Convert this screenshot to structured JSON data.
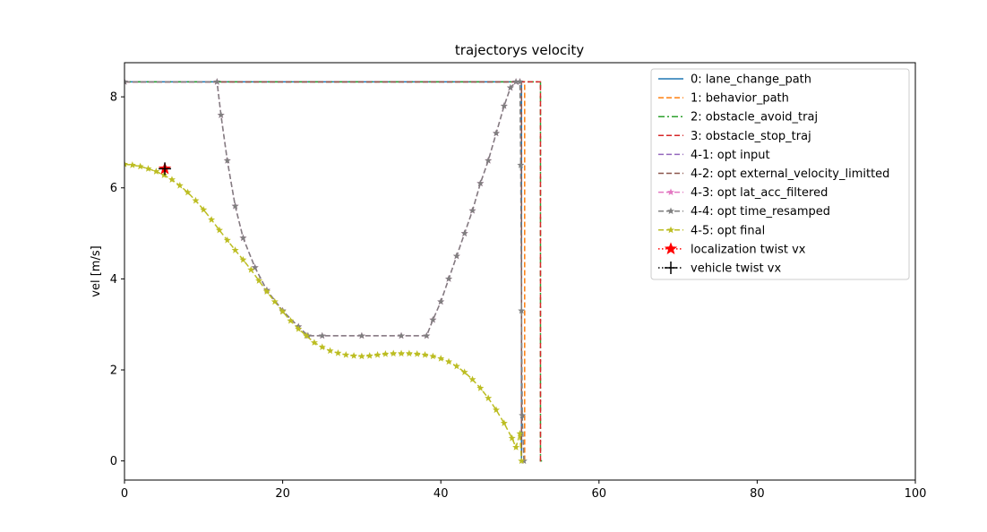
{
  "chart_data": {
    "type": "line",
    "title": "trajectorys velocity",
    "xlabel": "",
    "ylabel": "vel [m/s]",
    "xlim": [
      0,
      100
    ],
    "ylim": [
      -0.42,
      8.75
    ],
    "xticks": [
      0,
      20,
      40,
      60,
      80,
      100
    ],
    "yticks": [
      0,
      2,
      4,
      6,
      8
    ],
    "xtick_labels": [
      "0",
      "20",
      "40",
      "60",
      "80",
      "100"
    ],
    "ytick_labels": [
      "0",
      "2",
      "4",
      "6",
      "8"
    ],
    "grid": false,
    "legend_position": "top-right",
    "series": [
      {
        "name": "0: lane_change_path",
        "color": "#1f77b4",
        "linestyle": "solid",
        "marker": "none",
        "x": [
          0,
          50.2,
          50.2,
          50.4
        ],
        "y": [
          8.33,
          8.33,
          0,
          0
        ]
      },
      {
        "name": "1: behavior_path",
        "color": "#ff7f0e",
        "linestyle": "dashed",
        "marker": "none",
        "x": [
          0,
          50.6,
          50.6,
          50.8
        ],
        "y": [
          8.33,
          8.33,
          0,
          0
        ]
      },
      {
        "name": "2: obstacle_avoid_traj",
        "color": "#2ca02c",
        "linestyle": "dashdot",
        "marker": "none",
        "x": [
          0,
          52.6,
          52.6,
          52.8
        ],
        "y": [
          8.33,
          8.33,
          0,
          0
        ]
      },
      {
        "name": "3: obstacle_stop_traj",
        "color": "#d62728",
        "linestyle": "dashed",
        "marker": "none",
        "x": [
          0,
          52.6,
          52.6,
          52.8
        ],
        "y": [
          8.33,
          8.33,
          0,
          0
        ]
      },
      {
        "name": "4-1: opt input",
        "color": "#9467bd",
        "linestyle": "dashed",
        "marker": "none",
        "x": [
          0,
          50.2,
          50.2,
          50.4
        ],
        "y": [
          8.33,
          8.33,
          0,
          0
        ]
      },
      {
        "name": "4-2: opt external_velocity_limitted",
        "color": "#8c564b",
        "linestyle": "dashed",
        "marker": "none",
        "x": [
          0,
          50.2,
          50.2,
          50.4
        ],
        "y": [
          8.33,
          8.33,
          0,
          0
        ]
      },
      {
        "name": "4-3: opt lat_acc_filtered",
        "color": "#e377c2",
        "linestyle": "dashed",
        "marker": "star",
        "x": [
          0,
          11.7,
          12.2,
          13,
          14,
          15,
          16.5,
          18,
          20,
          22,
          23.2,
          25,
          30,
          35,
          38.2,
          39,
          40,
          41,
          42,
          43,
          44,
          45,
          46,
          47,
          48,
          48.8,
          49.5,
          50
        ],
        "y": [
          8.33,
          8.33,
          7.6,
          6.6,
          5.6,
          4.9,
          4.25,
          3.75,
          3.3,
          2.95,
          2.75,
          2.75,
          2.75,
          2.75,
          2.75,
          3.1,
          3.5,
          4.0,
          4.5,
          5.0,
          5.5,
          6.1,
          6.6,
          7.2,
          7.8,
          8.2,
          8.33,
          8.33
        ]
      },
      {
        "name": "4-4: opt time_resamped",
        "color": "#7f7f7f",
        "linestyle": "dashed",
        "marker": "star",
        "x": [
          0,
          11.7,
          12.2,
          13,
          14,
          15,
          16.5,
          18,
          20,
          22,
          23.2,
          25,
          30,
          35,
          38.2,
          39,
          40,
          41,
          42,
          43,
          44,
          45,
          46,
          47,
          48,
          48.8,
          49.5,
          50,
          50.1,
          50.2,
          50.3,
          50.5
        ],
        "y": [
          8.33,
          8.33,
          7.6,
          6.6,
          5.6,
          4.9,
          4.25,
          3.75,
          3.3,
          2.95,
          2.75,
          2.75,
          2.75,
          2.75,
          2.75,
          3.1,
          3.5,
          4.0,
          4.5,
          5.0,
          5.5,
          6.1,
          6.6,
          7.2,
          7.8,
          8.2,
          8.33,
          8.33,
          6.5,
          3.3,
          1.0,
          0
        ]
      },
      {
        "name": "4-5: opt final",
        "color": "#bcbd22",
        "linestyle": "dashed",
        "marker": "star",
        "x": [
          0,
          1,
          2,
          3,
          4,
          5,
          6,
          7,
          8,
          9,
          10,
          11,
          12,
          13,
          14,
          15,
          16,
          17,
          18,
          19,
          20,
          21,
          22,
          23,
          24,
          25,
          26,
          27,
          28,
          29,
          30,
          31,
          32,
          33,
          34,
          35,
          36,
          37,
          38,
          39,
          40,
          41,
          42,
          43,
          44,
          45,
          46,
          47,
          48,
          49,
          49.5,
          50,
          50.2
        ],
        "y": [
          6.52,
          6.5,
          6.47,
          6.42,
          6.36,
          6.28,
          6.18,
          6.05,
          5.9,
          5.72,
          5.52,
          5.3,
          5.07,
          4.85,
          4.63,
          4.42,
          4.2,
          3.96,
          3.72,
          3.5,
          3.28,
          3.08,
          2.9,
          2.75,
          2.6,
          2.5,
          2.42,
          2.37,
          2.33,
          2.31,
          2.3,
          2.31,
          2.33,
          2.35,
          2.36,
          2.36,
          2.36,
          2.35,
          2.33,
          2.3,
          2.25,
          2.18,
          2.08,
          1.95,
          1.79,
          1.6,
          1.38,
          1.12,
          0.83,
          0.5,
          0.3,
          0.6,
          0
        ]
      },
      {
        "name": "localization twist vx",
        "color": "#ff0000",
        "linestyle": "dotted",
        "marker": "big-star",
        "x": [
          5.1
        ],
        "y": [
          6.42
        ]
      },
      {
        "name": "vehicle twist vx",
        "color": "#000000",
        "linestyle": "dotted",
        "marker": "plus",
        "x": [
          5.1
        ],
        "y": [
          6.42
        ]
      }
    ]
  }
}
